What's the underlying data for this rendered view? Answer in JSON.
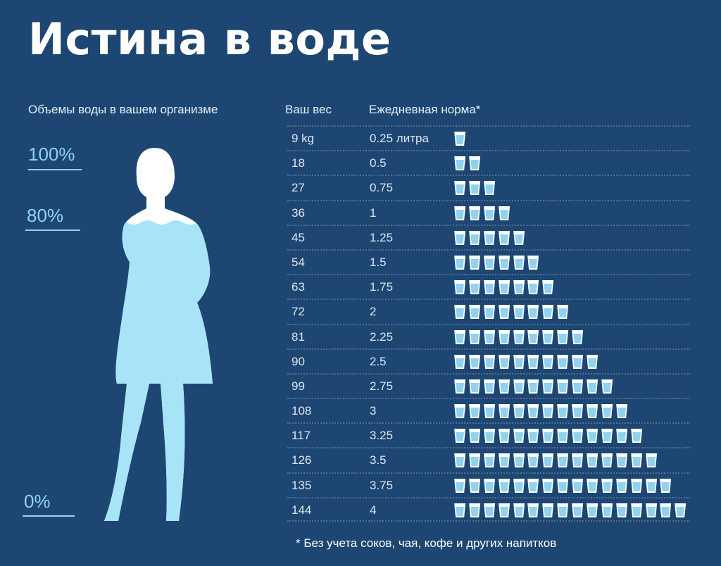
{
  "title": "Истина в воде",
  "headers": {
    "body_volume": "Объемы воды в вашем организме",
    "weight": "Ваш вес",
    "daily_norm": "Ежедневная норма*"
  },
  "levels": {
    "top": "100%",
    "mid": "80%",
    "bottom": "0%"
  },
  "footnote": "* Без учета соков, чая, кофе и других напитков",
  "chart_data": {
    "type": "table",
    "columns": [
      "Ваш вес",
      "Ежедневная норма*"
    ],
    "rows": [
      {
        "weight": "9 kg",
        "norm": "0.25 литра",
        "cups": 1
      },
      {
        "weight": "18",
        "norm": "0.5",
        "cups": 2
      },
      {
        "weight": "27",
        "norm": "0.75",
        "cups": 3
      },
      {
        "weight": "36",
        "norm": "1",
        "cups": 4
      },
      {
        "weight": "45",
        "norm": "1.25",
        "cups": 5
      },
      {
        "weight": "54",
        "norm": "1.5",
        "cups": 6
      },
      {
        "weight": "63",
        "norm": "1.75",
        "cups": 7
      },
      {
        "weight": "72",
        "norm": "2",
        "cups": 8
      },
      {
        "weight": "81",
        "norm": "2.25",
        "cups": 9
      },
      {
        "weight": "90",
        "norm": "2.5",
        "cups": 10
      },
      {
        "weight": "99",
        "norm": "2.75",
        "cups": 11
      },
      {
        "weight": "108",
        "norm": "3",
        "cups": 12
      },
      {
        "weight": "117",
        "norm": "3.25",
        "cups": 13
      },
      {
        "weight": "126",
        "norm": "3.5",
        "cups": 14
      },
      {
        "weight": "135",
        "norm": "3.75",
        "cups": 15
      },
      {
        "weight": "144",
        "norm": "4",
        "cups": 16
      }
    ],
    "body_water_level": 0.8
  },
  "colors": {
    "background": "#1e4672",
    "water": "#a8e4f7",
    "silhouette": "#ffffff",
    "accent": "#8fd3f0"
  },
  "icons": {
    "cup": "water-glass-icon"
  }
}
